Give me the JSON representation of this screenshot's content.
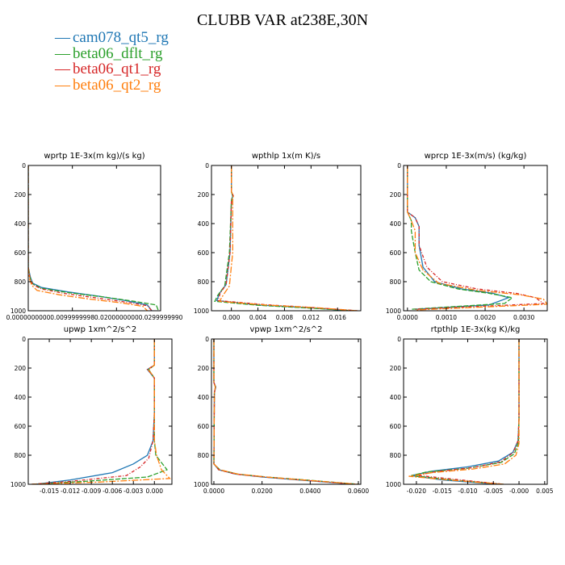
{
  "title": "CLUBB VAR at238E,30N",
  "legend": [
    {
      "label": "cam078_qt5_rg",
      "color": "#1f77b4"
    },
    {
      "label": "beta06_dflt_rg",
      "color": "#2ca02c"
    },
    {
      "label": "beta06_qt1_rg",
      "color": "#d62728"
    },
    {
      "label": "beta06_qt2_rg",
      "color": "#ff7f0e"
    }
  ],
  "chart_data": [
    {
      "type": "line",
      "title": "wprtp  1E-3x(m kg)/(s kg)",
      "xlim": [
        0.0,
        0.03
      ],
      "xticks": [
        0.0,
        0.01,
        0.02,
        0.03
      ],
      "xtick_labels": [
        "0.0000000000",
        "0.0099999998",
        "0.0200000000",
        "0.0299999990"
      ],
      "ylim": [
        1000,
        0
      ],
      "yticks": [
        0,
        200,
        400,
        600,
        800,
        1000
      ],
      "series": [
        {
          "name": "cam078_qt5_rg",
          "x": [
            0,
            0,
            0.0005,
            0.001,
            0.003,
            0.009,
            0.016,
            0.022,
            0.027,
            0.028
          ],
          "y": [
            0,
            700,
            770,
            810,
            840,
            870,
            900,
            930,
            960,
            1000
          ]
        },
        {
          "name": "beta06_dflt_rg",
          "x": [
            0,
            0,
            0.0004,
            0.001,
            0.003,
            0.009,
            0.017,
            0.024,
            0.029,
            0.0295
          ],
          "y": [
            0,
            700,
            770,
            815,
            845,
            875,
            905,
            935,
            960,
            1000
          ]
        },
        {
          "name": "beta06_qt1_rg",
          "x": [
            0,
            0,
            0.0004,
            0.001,
            0.003,
            0.008,
            0.015,
            0.022,
            0.027,
            0.028
          ],
          "y": [
            0,
            700,
            780,
            820,
            850,
            880,
            910,
            940,
            965,
            1000
          ]
        },
        {
          "name": "beta06_qt2_rg",
          "x": [
            0,
            0,
            0.0003,
            0.0008,
            0.002,
            0.007,
            0.014,
            0.021,
            0.026,
            0.027
          ],
          "y": [
            0,
            700,
            780,
            825,
            860,
            890,
            920,
            945,
            970,
            1000
          ]
        }
      ]
    },
    {
      "type": "line",
      "title": "wpthlp  1x(m K)/s",
      "xlim": [
        -0.003,
        0.0195
      ],
      "xticks": [
        0.0,
        0.004,
        0.008,
        0.012,
        0.016
      ],
      "xtick_labels": [
        "0.000",
        "0.004",
        "0.008",
        "0.012",
        "0.016"
      ],
      "ylim": [
        1000,
        0
      ],
      "yticks": [
        0,
        200,
        400,
        600,
        800,
        1000
      ],
      "series": [
        {
          "name": "cam078_qt5_rg",
          "x": [
            0,
            0,
            0.0002,
            0,
            -0.0002,
            -0.0008,
            -0.0018,
            -0.0022,
            0.004,
            0.012,
            0.0175
          ],
          "y": [
            0,
            180,
            210,
            240,
            600,
            820,
            880,
            930,
            960,
            980,
            1000
          ]
        },
        {
          "name": "beta06_dflt_rg",
          "x": [
            0,
            0,
            0.0002,
            0,
            -0.0003,
            -0.001,
            -0.002,
            -0.0025,
            0.004,
            0.012,
            0.0185
          ],
          "y": [
            0,
            180,
            210,
            240,
            600,
            830,
            890,
            935,
            962,
            982,
            1000
          ]
        },
        {
          "name": "beta06_qt1_rg",
          "x": [
            0,
            0,
            0.0003,
            0,
            -0.0002,
            -0.0008,
            -0.0017,
            -0.002,
            0.005,
            0.013,
            0.019
          ],
          "y": [
            0,
            180,
            210,
            240,
            600,
            820,
            880,
            930,
            958,
            980,
            1000
          ]
        },
        {
          "name": "beta06_qt2_rg",
          "x": [
            0,
            0,
            0.0003,
            0.0002,
            0.0002,
            -0.0003,
            -0.0012,
            -0.0018,
            0.005,
            0.013,
            0.019
          ],
          "y": [
            0,
            180,
            210,
            240,
            600,
            830,
            890,
            935,
            960,
            980,
            1000
          ]
        }
      ]
    },
    {
      "type": "line",
      "title": "wprcp  1E-3x(m/s) (kg/kg)",
      "xlim": [
        -0.0001,
        0.0036
      ],
      "xticks": [
        0.0,
        0.001,
        0.002,
        0.003
      ],
      "xtick_labels": [
        "0.0000",
        "0.0010",
        "0.0020",
        "0.0030"
      ],
      "ylim": [
        1000,
        0
      ],
      "yticks": [
        0,
        200,
        400,
        600,
        800,
        1000
      ],
      "series": [
        {
          "name": "cam078_qt5_rg",
          "x": [
            0,
            0,
            0.0002,
            0.0003,
            0.0003,
            0.0004,
            0.0007,
            0.0014,
            0.0022,
            0.0026,
            0.0021,
            0.0002
          ],
          "y": [
            0,
            320,
            360,
            420,
            550,
            700,
            800,
            850,
            880,
            910,
            960,
            990
          ]
        },
        {
          "name": "beta06_dflt_rg",
          "x": [
            0,
            0,
            0.0001,
            0.0001,
            0.0002,
            0.0003,
            0.0006,
            0.0013,
            0.0021,
            0.0027,
            0.0025,
            0.0001
          ],
          "y": [
            0,
            320,
            380,
            450,
            600,
            720,
            800,
            850,
            880,
            910,
            950,
            990
          ]
        },
        {
          "name": "beta06_qt1_rg",
          "x": [
            0,
            0,
            0.0002,
            0.0003,
            0.0003,
            0.0005,
            0.0009,
            0.0018,
            0.0028,
            0.0033,
            0.0035,
            0.0002
          ],
          "y": [
            0,
            320,
            360,
            420,
            550,
            700,
            800,
            850,
            880,
            910,
            950,
            990
          ]
        },
        {
          "name": "beta06_qt2_rg",
          "x": [
            0,
            0,
            0.0001,
            0.0002,
            0.0002,
            0.0004,
            0.0008,
            0.0018,
            0.0029,
            0.0035,
            0.0036,
            0.0002
          ],
          "y": [
            0,
            320,
            380,
            450,
            600,
            720,
            810,
            860,
            890,
            920,
            955,
            995
          ]
        }
      ]
    },
    {
      "type": "line",
      "title": "upwp  1xm^2/s^2",
      "xlim": [
        -0.018,
        0.0025
      ],
      "xticks": [
        -0.015,
        -0.012,
        -0.009,
        -0.006,
        -0.003,
        0.0
      ],
      "xtick_labels": [
        "-0.015",
        "-0.012",
        "-0.009",
        "-0.006",
        "-0.003",
        "0.000"
      ],
      "ylim": [
        1000,
        0
      ],
      "yticks": [
        0,
        200,
        400,
        600,
        800,
        1000
      ],
      "series": [
        {
          "name": "cam078_qt5_rg",
          "x": [
            0,
            0,
            -0.001,
            -0.0005,
            0,
            0,
            -0.0002,
            -0.001,
            -0.003,
            -0.006,
            -0.012,
            -0.017
          ],
          "y": [
            0,
            180,
            210,
            240,
            270,
            500,
            700,
            800,
            860,
            920,
            970,
            1000
          ]
        },
        {
          "name": "beta06_dflt_rg",
          "x": [
            0,
            0,
            -0.0008,
            -0.0004,
            0,
            0,
            0,
            0.0002,
            0.0018,
            -0.001,
            -0.01,
            -0.0175
          ],
          "y": [
            0,
            180,
            210,
            240,
            270,
            500,
            700,
            800,
            900,
            950,
            980,
            1000
          ]
        },
        {
          "name": "beta06_qt1_rg",
          "x": [
            0,
            0,
            -0.001,
            -0.0004,
            0,
            0,
            -0.0002,
            -0.0008,
            -0.002,
            -0.004,
            -0.012,
            -0.0175
          ],
          "y": [
            0,
            180,
            210,
            240,
            270,
            500,
            700,
            820,
            880,
            940,
            980,
            1000
          ]
        },
        {
          "name": "beta06_qt2_rg",
          "x": [
            0,
            0,
            -0.0009,
            -0.0004,
            0,
            0,
            0,
            0.0003,
            0.001,
            0.0022,
            -0.008,
            -0.0175
          ],
          "y": [
            0,
            180,
            210,
            240,
            270,
            500,
            700,
            800,
            900,
            960,
            985,
            1000
          ]
        }
      ]
    },
    {
      "type": "line",
      "title": "vpwp  1xm^2/s^2",
      "xlim": [
        -0.001,
        0.061
      ],
      "xticks": [
        0.0,
        0.02,
        0.04,
        0.06
      ],
      "xtick_labels": [
        "0.0000",
        "0.0200",
        "0.0400",
        "0.0600"
      ],
      "ylim": [
        1000,
        0
      ],
      "yticks": [
        0,
        200,
        400,
        600,
        800,
        1000
      ],
      "series": [
        {
          "name": "cam078_qt5_rg",
          "x": [
            0,
            0,
            0.0008,
            0.0002,
            0,
            0.002,
            0.009,
            0.02,
            0.035,
            0.058
          ],
          "y": [
            0,
            300,
            330,
            370,
            860,
            900,
            930,
            950,
            970,
            1000
          ]
        },
        {
          "name": "beta06_dflt_rg",
          "x": [
            0,
            0,
            0.0006,
            0.0002,
            0,
            0.0025,
            0.01,
            0.022,
            0.038,
            0.06
          ],
          "y": [
            0,
            300,
            330,
            370,
            860,
            900,
            930,
            950,
            970,
            1000
          ]
        },
        {
          "name": "beta06_qt1_rg",
          "x": [
            0,
            0,
            0.0007,
            0.0002,
            0,
            0.002,
            0.009,
            0.021,
            0.036,
            0.059
          ],
          "y": [
            0,
            300,
            330,
            370,
            860,
            900,
            930,
            950,
            970,
            1000
          ]
        },
        {
          "name": "beta06_qt2_rg",
          "x": [
            0,
            0,
            0.0006,
            0.0002,
            0,
            0.0025,
            0.01,
            0.022,
            0.037,
            0.06
          ],
          "y": [
            0,
            300,
            330,
            370,
            860,
            900,
            930,
            950,
            970,
            1000
          ]
        }
      ]
    },
    {
      "type": "line",
      "title": "rtpthlp  1E-3x(kg K)/kg",
      "xlim": [
        -0.0225,
        0.0055
      ],
      "xticks": [
        -0.02,
        -0.015,
        -0.01,
        -0.005,
        0.0,
        0.005
      ],
      "xtick_labels": [
        "-0.020",
        "-0.015",
        "-0.010",
        "-0.005",
        "-0.000",
        "0.005"
      ],
      "ylim": [
        1000,
        0
      ],
      "yticks": [
        0,
        200,
        400,
        600,
        800,
        1000
      ],
      "series": [
        {
          "name": "cam078_qt5_rg",
          "x": [
            0,
            0,
            -0.0002,
            -0.0012,
            -0.004,
            -0.01,
            -0.017,
            -0.021,
            -0.015,
            -0.004
          ],
          "y": [
            0,
            550,
            700,
            780,
            840,
            880,
            910,
            940,
            970,
            1000
          ]
        },
        {
          "name": "beta06_dflt_rg",
          "x": [
            0,
            0,
            -0.0001,
            -0.0009,
            -0.0035,
            -0.01,
            -0.018,
            -0.021,
            -0.013,
            -0.003
          ],
          "y": [
            0,
            550,
            710,
            790,
            850,
            890,
            915,
            940,
            970,
            1000
          ]
        },
        {
          "name": "beta06_qt1_rg",
          "x": [
            0,
            0,
            -0.0002,
            -0.0011,
            -0.0035,
            -0.009,
            -0.016,
            -0.02,
            -0.012,
            -0.003
          ],
          "y": [
            0,
            550,
            700,
            780,
            845,
            885,
            912,
            938,
            968,
            1000
          ]
        },
        {
          "name": "beta06_qt2_rg",
          "x": [
            0,
            0,
            0,
            -0.0006,
            -0.0028,
            -0.009,
            -0.017,
            -0.0215,
            -0.013,
            -0.003
          ],
          "y": [
            0,
            550,
            720,
            800,
            860,
            895,
            920,
            945,
            972,
            1000
          ]
        }
      ]
    }
  ]
}
